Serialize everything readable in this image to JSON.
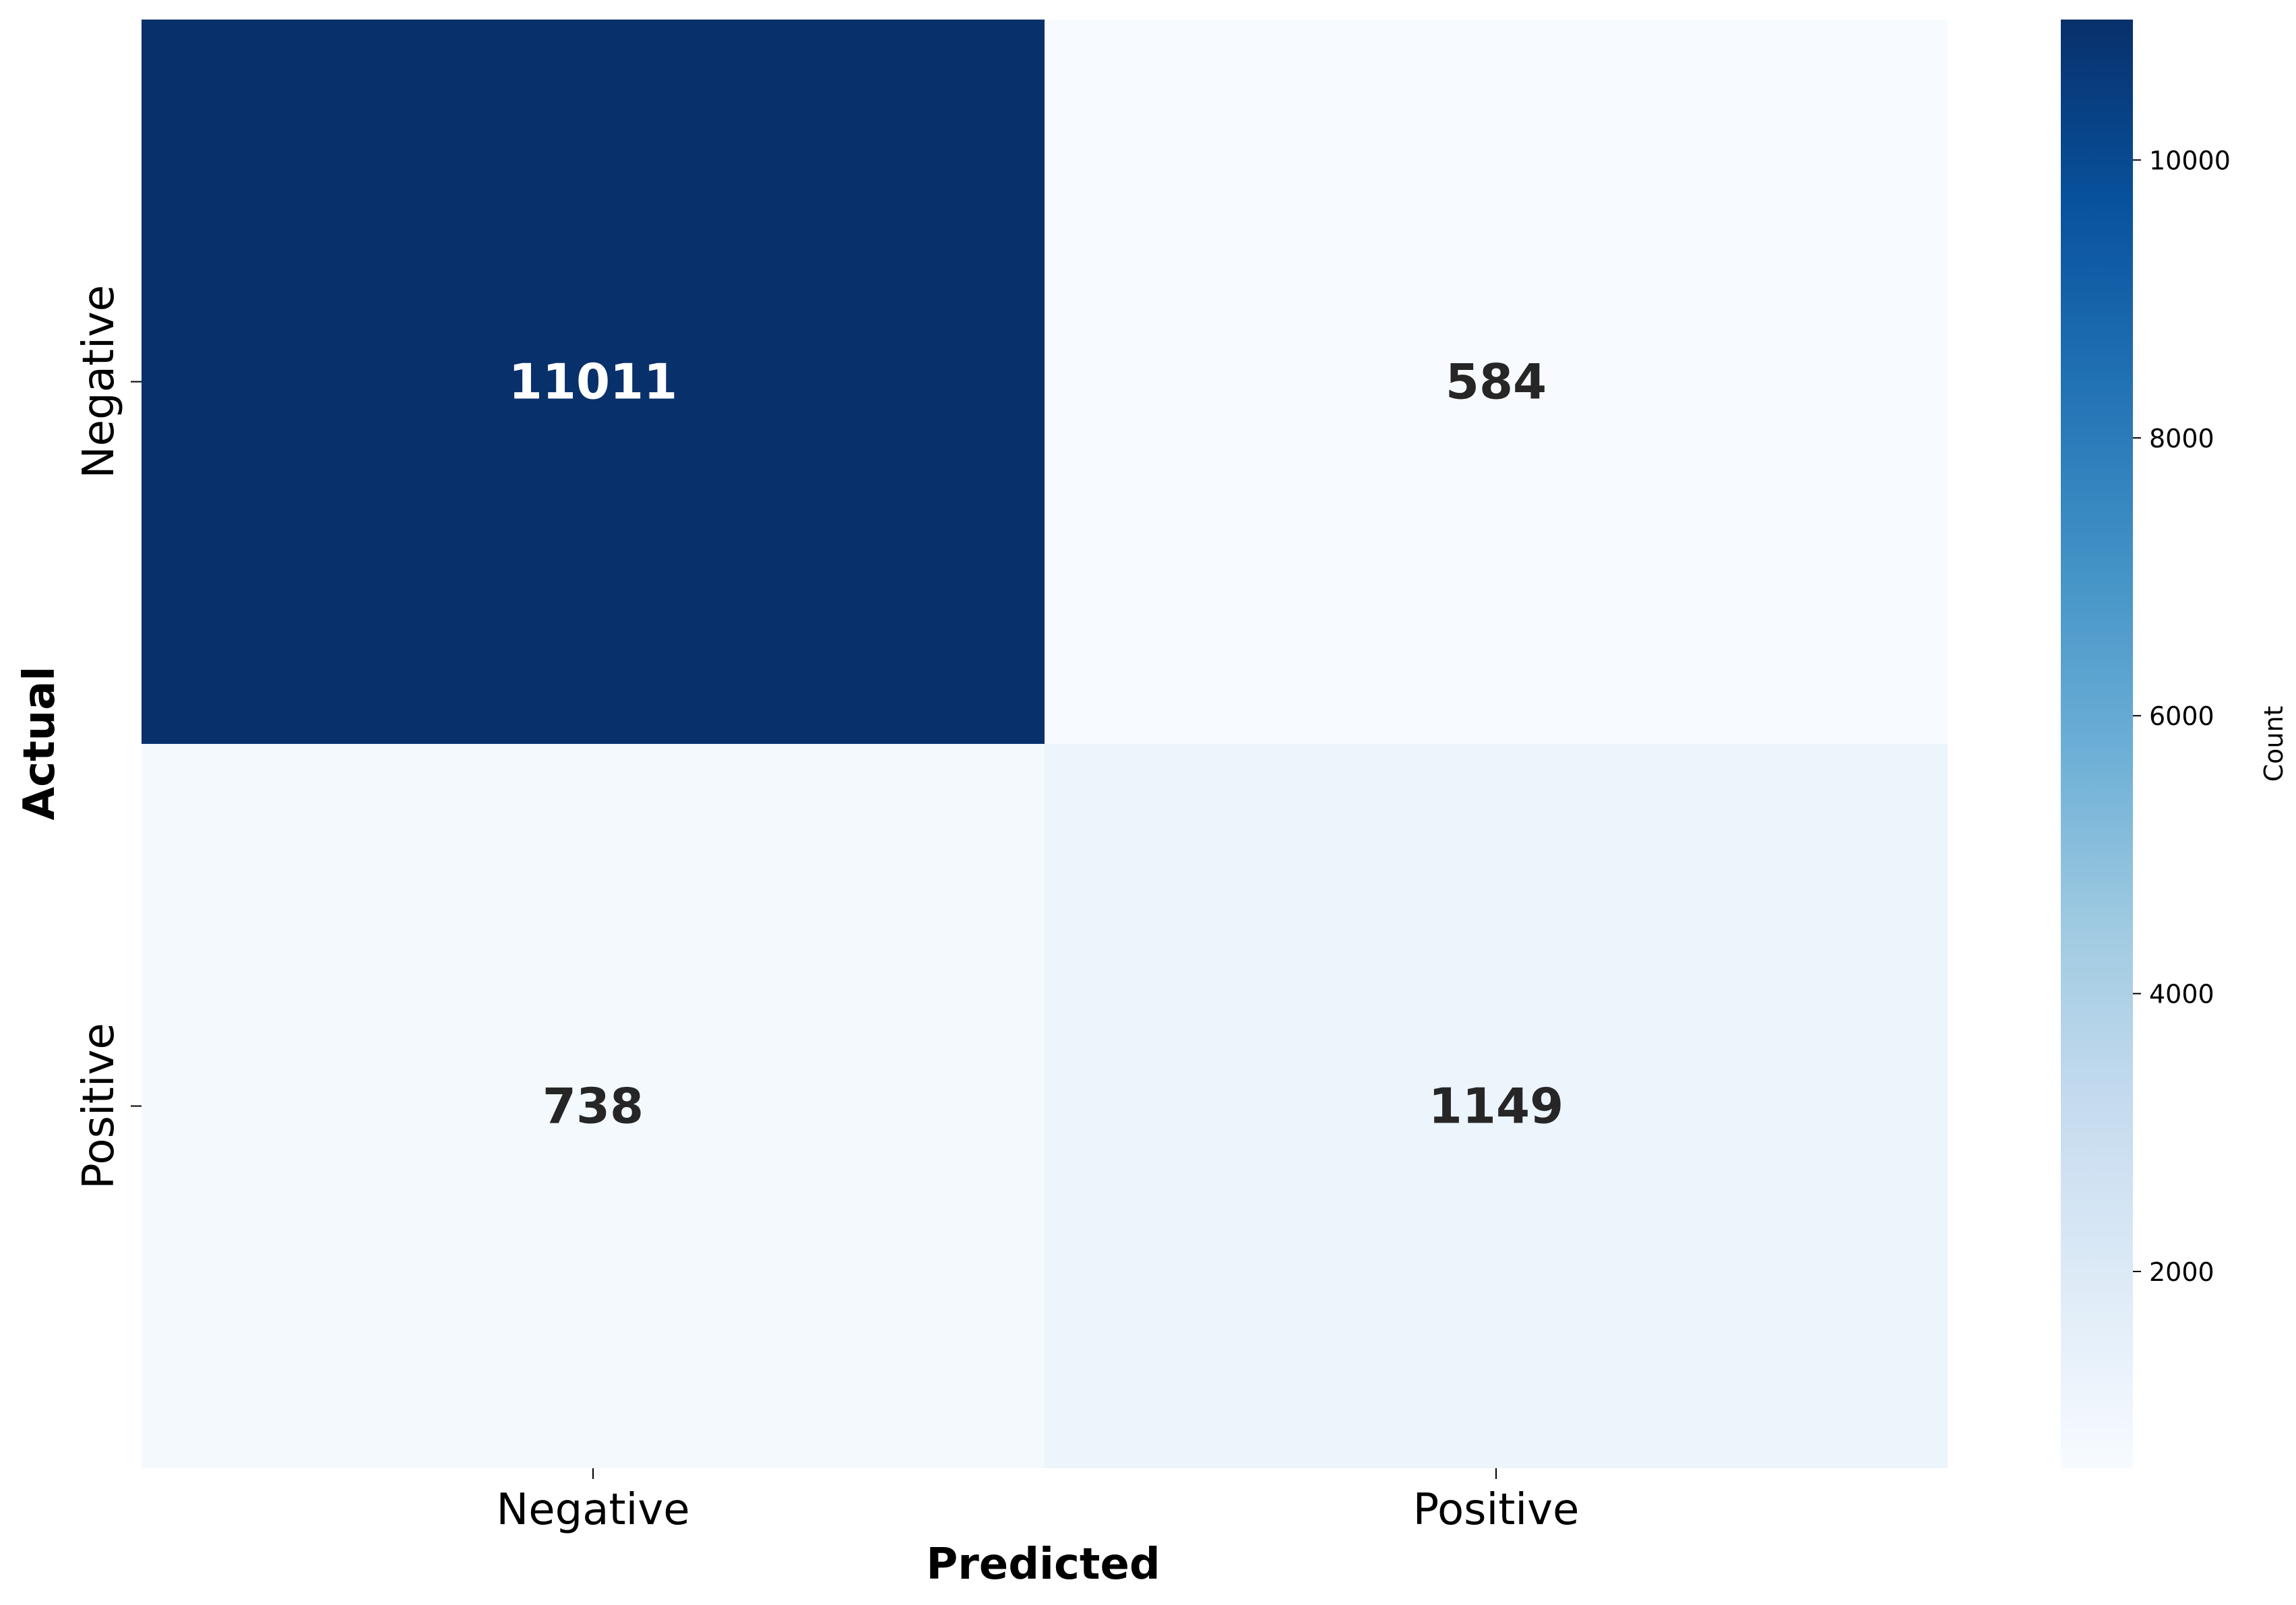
{
  "chart_data": {
    "type": "heatmap",
    "title": "",
    "xlabel": "Predicted",
    "ylabel": "Actual",
    "x_categories": [
      "Negative",
      "Positive"
    ],
    "y_categories": [
      "Negative",
      "Positive"
    ],
    "values": [
      [
        11011,
        584
      ],
      [
        738,
        1149
      ]
    ],
    "colormap": "Blues",
    "colorbar": {
      "label": "Count",
      "range": [
        584,
        11011
      ],
      "ticks": [
        2000,
        4000,
        6000,
        8000,
        10000
      ],
      "tick_labels": [
        "2000",
        "4000",
        "6000",
        "8000",
        "10000"
      ]
    },
    "grid": false,
    "legend": "colorbar-right"
  },
  "colors": {
    "low": "#f7fbff",
    "high": "#08306b",
    "text_dark": "#262626",
    "text_light": "#ffffff"
  }
}
